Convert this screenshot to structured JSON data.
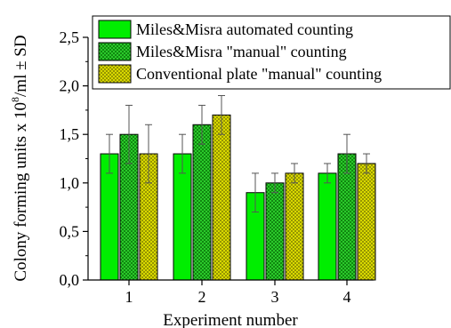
{
  "chart_data": {
    "type": "bar",
    "categories": [
      "1",
      "2",
      "3",
      "4"
    ],
    "xlabel": "Experiment number",
    "ylabel_main": "Colony forming units x 10",
    "ylabel_sup": "8",
    "ylabel_tail": "/ml ± SD",
    "ylim": [
      0,
      2.5
    ],
    "yticks": [
      0,
      0.5,
      1.0,
      1.5,
      2.0,
      2.5
    ],
    "ytick_labels": [
      "0,0",
      "0,5",
      "1,0",
      "1,5",
      "2,0",
      "2,5"
    ],
    "grid": false,
    "legend_position": "top-right",
    "series": [
      {
        "name": "Miles&Misra automated counting",
        "values": [
          1.3,
          1.3,
          0.9,
          1.1
        ],
        "errors": [
          0.2,
          0.2,
          0.2,
          0.1
        ],
        "color": "#00ee00",
        "pattern": "solid"
      },
      {
        "name": "Miles&Misra \"manual\" counting",
        "values": [
          1.5,
          1.6,
          1.0,
          1.3
        ],
        "errors": [
          0.3,
          0.2,
          0.1,
          0.2
        ],
        "color": "#22cc22",
        "pattern": "crosshatch"
      },
      {
        "name": "Conventional plate \"manual\" counting",
        "values": [
          1.3,
          1.7,
          1.1,
          1.2
        ],
        "errors": [
          0.3,
          0.2,
          0.1,
          0.1
        ],
        "color": "#e0e000",
        "pattern": "crosshatch"
      }
    ]
  }
}
